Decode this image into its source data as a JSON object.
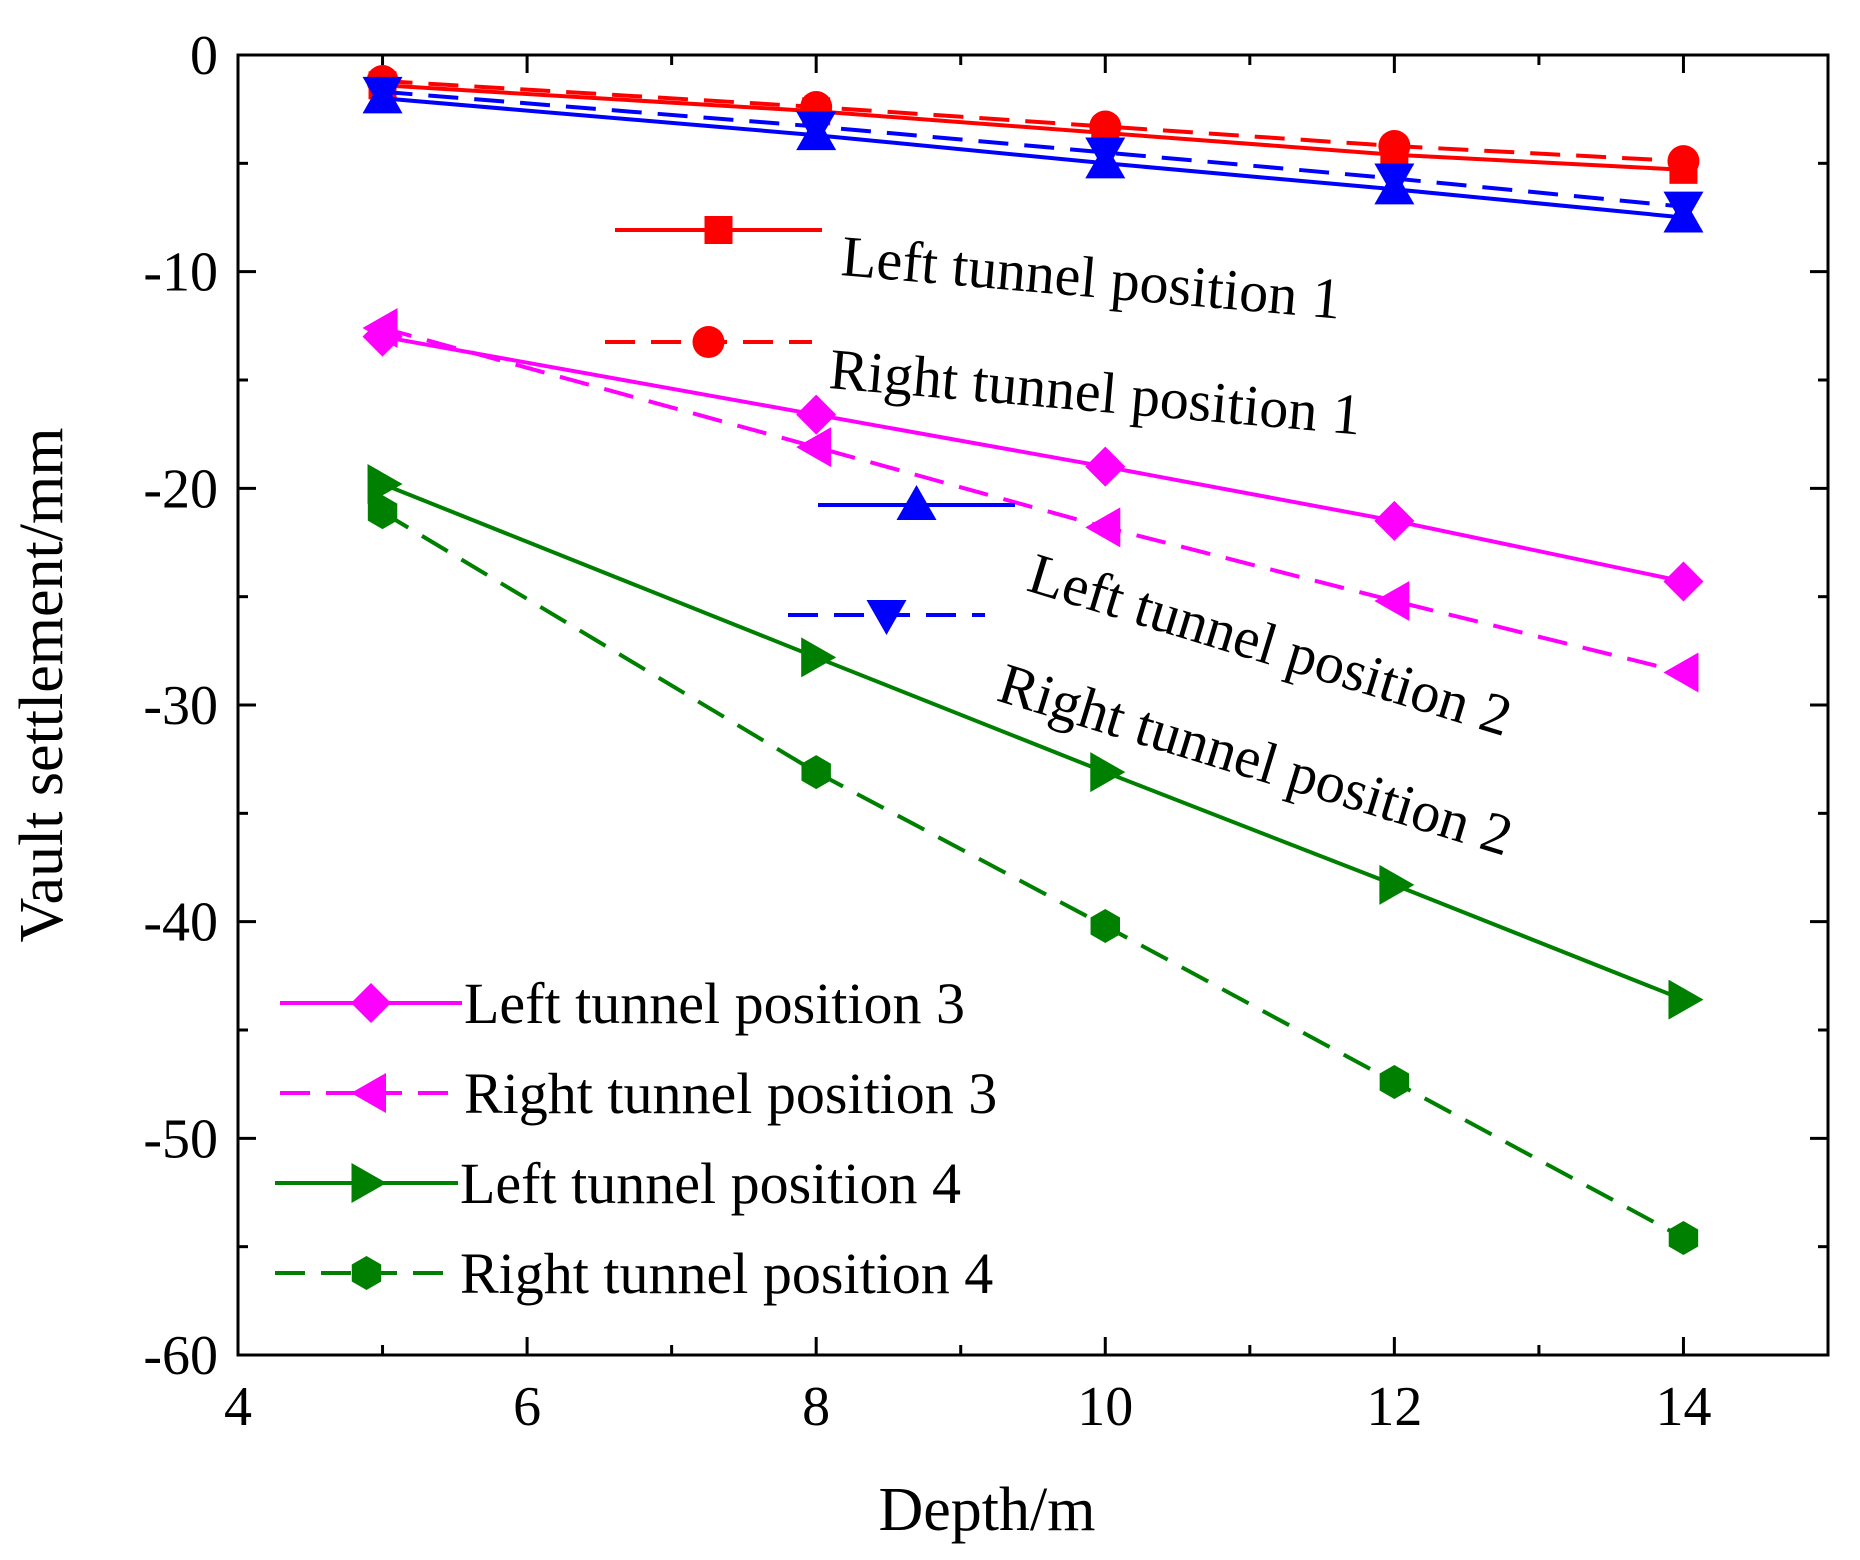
{
  "chart_data": {
    "type": "line",
    "xlabel": "Depth/m",
    "ylabel": "Vault settlement/mm",
    "xlim": [
      4,
      15
    ],
    "ylim": [
      -60,
      0
    ],
    "x_ticks": [
      4,
      6,
      8,
      10,
      12,
      14
    ],
    "y_ticks": [
      0,
      -10,
      -20,
      -30,
      -40,
      -50,
      -60
    ],
    "x_minor_step": 1,
    "y_minor_step": 5,
    "grid": false,
    "x": [
      5,
      8,
      10,
      12,
      14
    ],
    "series": [
      {
        "name": "Left tunnel position 1",
        "color": "#ff0000",
        "dash": "solid",
        "marker": "square",
        "values": [
          -1.4,
          -2.6,
          -3.6,
          -4.6,
          -5.3
        ]
      },
      {
        "name": "Right tunnel position 1",
        "color": "#ff0000",
        "dash": "dashed",
        "marker": "circle",
        "values": [
          -1.2,
          -2.4,
          -3.3,
          -4.2,
          -4.9
        ]
      },
      {
        "name": "Left tunnel position 2",
        "color": "#0000ff",
        "dash": "solid",
        "marker": "triangle-up",
        "values": [
          -2.0,
          -3.7,
          -5.0,
          -6.2,
          -7.5
        ]
      },
      {
        "name": "Right tunnel position 2",
        "color": "#0000ff",
        "dash": "dashed",
        "marker": "triangle-down",
        "values": [
          -1.7,
          -3.3,
          -4.5,
          -5.7,
          -7.0
        ]
      },
      {
        "name": "Left tunnel position 3",
        "color": "#ff00ff",
        "dash": "solid",
        "marker": "diamond",
        "values": [
          -13.0,
          -16.6,
          -19.0,
          -21.5,
          -24.3
        ]
      },
      {
        "name": "Right tunnel position 3",
        "color": "#ff00ff",
        "dash": "dashed",
        "marker": "triangle-left",
        "values": [
          -12.6,
          -18.1,
          -21.8,
          -25.2,
          -28.5
        ]
      },
      {
        "name": "Left tunnel position 4",
        "color": "#008000",
        "dash": "solid",
        "marker": "triangle-right",
        "values": [
          -19.8,
          -27.8,
          -33.1,
          -38.3,
          -43.6
        ]
      },
      {
        "name": "Right tunnel position 4",
        "color": "#008000",
        "dash": "dashed",
        "marker": "hexagon",
        "values": [
          -21.1,
          -33.1,
          -40.2,
          -47.4,
          -54.6
        ]
      }
    ]
  }
}
